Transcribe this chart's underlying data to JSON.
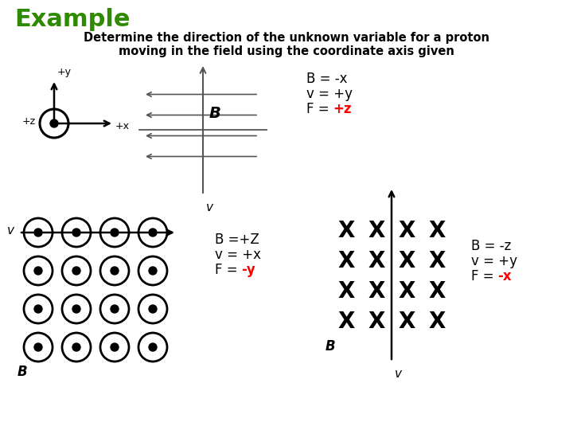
{
  "title": "Example",
  "title_color": "#2e8b00",
  "subtitle_line1": "Determine the direction of the unknown variable for a proton",
  "subtitle_line2": "moving in the field using the coordinate axis given",
  "bg_color": "#ffffff",
  "case1_lines": [
    "B = -x",
    "v = +y",
    "F = ",
    "+z"
  ],
  "case1_colors": [
    "black",
    "black",
    "black",
    "red"
  ],
  "case2_lines": [
    "B =+Z",
    "v = +x",
    "F = ",
    "-y"
  ],
  "case2_colors": [
    "black",
    "black",
    "black",
    "red"
  ],
  "case3_lines": [
    "B = -z",
    "v = +y",
    "F = ",
    "-x"
  ],
  "case3_colors": [
    "black",
    "black",
    "black",
    "red"
  ]
}
